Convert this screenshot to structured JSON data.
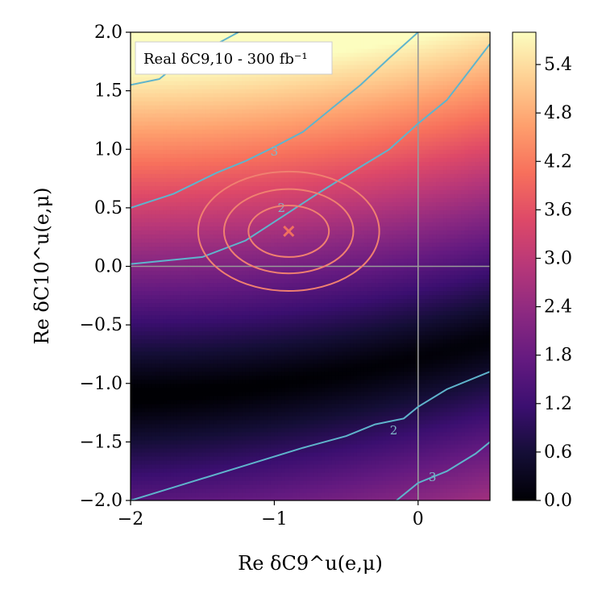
{
  "chart_data": {
    "type": "heatmap",
    "title": "",
    "annotation": "Real δC9,10 - 300 fb⁻¹",
    "xlabel": "Re δC9^u(e,μ)",
    "ylabel": "Re δC10^u(e,μ)",
    "xlim": [
      -2,
      0.5
    ],
    "ylim": [
      -2,
      2
    ],
    "x_ticks": [
      "−2",
      "−1",
      "0"
    ],
    "x_tick_values": [
      -2,
      -1,
      0
    ],
    "y_ticks": [
      "−2.0",
      "−1.5",
      "−1.0",
      "−0.5",
      "0.0",
      "0.5",
      "1.0",
      "1.5",
      "2.0"
    ],
    "y_tick_values": [
      -2,
      -1.5,
      -1,
      -0.5,
      0,
      0.5,
      1,
      1.5,
      2
    ],
    "colorbar": {
      "range": [
        0,
        5.8
      ],
      "ticks": [
        "0.0",
        "0.6",
        "1.2",
        "1.8",
        "2.4",
        "3.0",
        "3.6",
        "4.2",
        "4.8",
        "5.4"
      ],
      "tick_values": [
        0,
        0.6,
        1.2,
        1.8,
        2.4,
        3.0,
        3.6,
        4.2,
        4.8,
        5.4
      ],
      "colormap": "magma"
    },
    "reference_lines": {
      "x": 0,
      "y": 0,
      "color": "#9a9a9a"
    },
    "best_fit_point": {
      "x": -0.9,
      "y": 0.3,
      "marker": "×",
      "color": "#f07060"
    },
    "likelihood_ellipses": {
      "center": [
        -0.9,
        0.3
      ],
      "color": "#f08070",
      "semi_axes": [
        [
          0.28,
          0.22
        ],
        [
          0.45,
          0.36
        ],
        [
          0.63,
          0.51
        ]
      ]
    },
    "significance_contours": {
      "color": "#5fb4cc",
      "lines": [
        {
          "label": "2",
          "upper_points": [
            [
              -2.0,
              0.02
            ],
            [
              -1.5,
              0.08
            ],
            [
              -1.2,
              0.22
            ],
            [
              -1.0,
              0.38
            ],
            [
              -0.7,
              0.62
            ],
            [
              -0.4,
              0.85
            ],
            [
              -0.2,
              1.0
            ],
            [
              0.0,
              1.22
            ],
            [
              0.2,
              1.42
            ],
            [
              0.5,
              1.9
            ]
          ],
          "lower_points": [
            [
              -2.0,
              -2.0
            ],
            [
              -1.6,
              -1.85
            ],
            [
              -1.2,
              -1.7
            ],
            [
              -0.8,
              -1.55
            ],
            [
              -0.5,
              -1.45
            ],
            [
              -0.3,
              -1.35
            ],
            [
              -0.1,
              -1.3
            ],
            [
              0.0,
              -1.2
            ],
            [
              0.2,
              -1.05
            ],
            [
              0.5,
              -0.9
            ]
          ]
        },
        {
          "label": "3",
          "upper_points": [
            [
              -2.0,
              0.5
            ],
            [
              -1.7,
              0.62
            ],
            [
              -1.4,
              0.8
            ],
            [
              -1.2,
              0.9
            ],
            [
              -1.0,
              1.02
            ],
            [
              -0.8,
              1.15
            ],
            [
              -0.6,
              1.35
            ],
            [
              -0.4,
              1.55
            ],
            [
              -0.2,
              1.78
            ],
            [
              0.0,
              2.0
            ]
          ],
          "lower_points": [
            [
              -0.15,
              -2.0
            ],
            [
              0.0,
              -1.85
            ],
            [
              0.2,
              -1.75
            ],
            [
              0.4,
              -1.6
            ],
            [
              0.5,
              -1.5
            ]
          ]
        },
        {
          "label": "",
          "upper_points": [
            [
              -2.0,
              1.55
            ],
            [
              -1.8,
              1.6
            ],
            [
              -1.6,
              1.8
            ],
            [
              -1.4,
              1.9
            ],
            [
              -1.25,
              2.0
            ]
          ],
          "lower_points": []
        }
      ],
      "label_positions": [
        {
          "label": "2",
          "x": -0.95,
          "y": 0.5
        },
        {
          "label": "3",
          "x": -1.0,
          "y": 0.98
        },
        {
          "label": "2",
          "x": -0.17,
          "y": -1.4
        },
        {
          "label": "3",
          "x": 0.1,
          "y": -1.8
        }
      ]
    }
  }
}
